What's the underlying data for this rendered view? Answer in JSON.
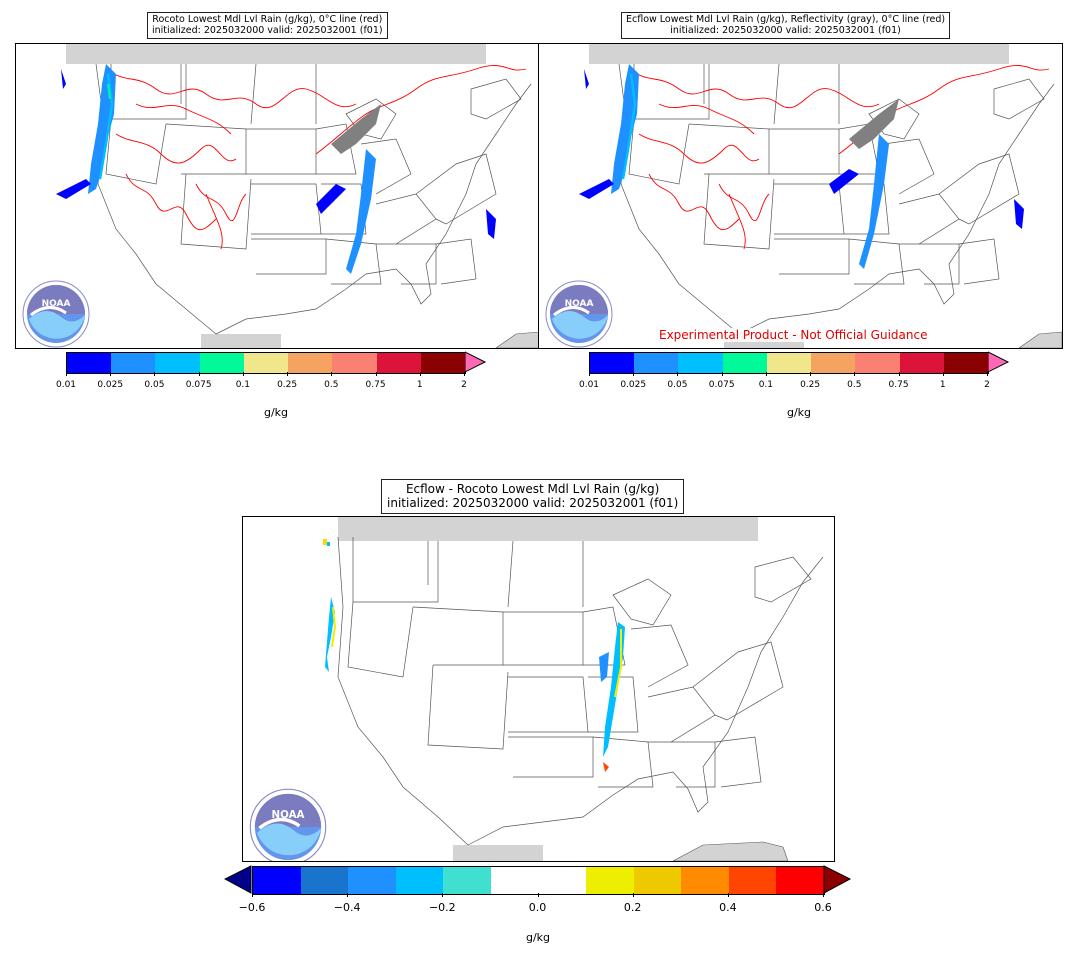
{
  "panels": [
    {
      "title_line1": "Rocoto Lowest Mdl Lvl Rain (g/kg), 0°C line (red)",
      "title_line2": "initialized: 2025032000 valid: 2025032001 (f01)"
    },
    {
      "title_line1": "Ecflow Lowest Mdl Lvl Rain (g/kg), Reflectivity (gray), 0°C line (red)",
      "title_line2": "initialized: 2025032000 valid: 2025032001 (f01)",
      "watermark": "Experimental Product - Not Official Guidance"
    },
    {
      "title_line1": "Ecflow - Rocoto Lowest Mdl Lvl Rain (g/kg)",
      "title_line2": "initialized: 2025032000 valid: 2025032001 (f01)"
    }
  ],
  "colorbar_rain": {
    "ticks": [
      "0.01",
      "0.025",
      "0.05",
      "0.075",
      "0.1",
      "0.25",
      "0.5",
      "0.75",
      "1",
      "2"
    ],
    "colors": [
      "#0000ff",
      "#1e90ff",
      "#00bfff",
      "#00fa9a",
      "#f0e68c",
      "#f4a460",
      "#fa8072",
      "#dc143c",
      "#8b0000"
    ],
    "extend_color": "#ff69b4",
    "unit": "g/kg"
  },
  "colorbar_diff": {
    "ticks": [
      "−0.6",
      "−0.4",
      "−0.2",
      "0.0",
      "0.2",
      "0.4",
      "0.6"
    ],
    "colors": [
      "#0000ff",
      "#1874cd",
      "#1e90ff",
      "#00bfff",
      "#40e0d0",
      "#ffffff",
      "#ffffff",
      "#eeee00",
      "#eec900",
      "#ff8c00",
      "#ff4500",
      "#ff0000"
    ],
    "min_extend_color": "#00008b",
    "max_extend_color": "#8b0000",
    "unit": "g/kg"
  },
  "logo_text": "NOAA"
}
